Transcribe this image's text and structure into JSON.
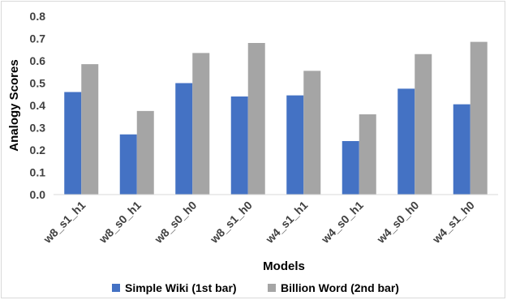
{
  "chart_data": {
    "type": "bar",
    "title": "",
    "xlabel": "Models",
    "ylabel": "Analogy Scores",
    "ylim": [
      0,
      0.8
    ],
    "yticks": [
      "0.0",
      "0.1",
      "0.2",
      "0.3",
      "0.4",
      "0.5",
      "0.6",
      "0.7",
      "0.8"
    ],
    "grid": false,
    "legend_position": "bottom",
    "categories": [
      "w8_s1_h1",
      "w8_s0_h1",
      "w8_s0_h0",
      "w8_s1_h0",
      "w4_s1_h1",
      "w4_s0_h1",
      "w4_s0_h0",
      "w4_s1_h0"
    ],
    "series": [
      {
        "name": "Simple Wiki (1st bar)",
        "color": "#4472c4",
        "values": [
          0.46,
          0.27,
          0.5,
          0.44,
          0.445,
          0.24,
          0.475,
          0.405
        ]
      },
      {
        "name": "Billion Word (2nd bar)",
        "color": "#a5a5a5",
        "values": [
          0.585,
          0.375,
          0.635,
          0.68,
          0.555,
          0.36,
          0.63,
          0.685
        ]
      }
    ]
  }
}
